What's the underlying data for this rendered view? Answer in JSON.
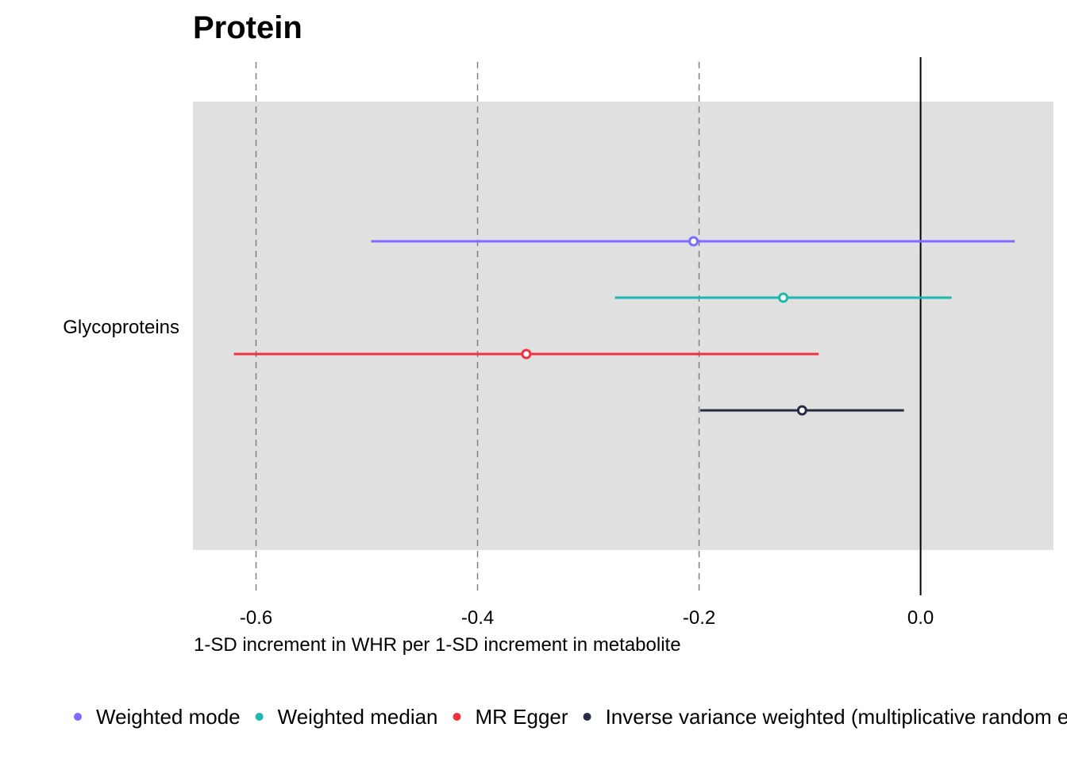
{
  "chart_data": {
    "type": "forest",
    "title": "Protein",
    "xlabel": "1-SD increment in WHR per 1-SD increment in metabolite",
    "ylabel": "",
    "xlim": [
      -0.657,
      0.12
    ],
    "x_ticks": [
      -0.6,
      -0.4,
      -0.2,
      0.0
    ],
    "x_tick_labels": [
      "-0.6",
      "-0.4",
      "-0.2",
      "0.0"
    ],
    "reference_line": 0.0,
    "dashed_gridlines": [
      -0.6,
      -0.4,
      -0.2
    ],
    "categories": [
      "Glycoproteins"
    ],
    "legend_position": "bottom",
    "series": [
      {
        "name": "Weighted mode",
        "color": "#7B6CFF",
        "estimate": -0.205,
        "lower": -0.496,
        "upper": 0.085
      },
      {
        "name": "Weighted median",
        "color": "#1CB8AE",
        "estimate": -0.124,
        "lower": -0.276,
        "upper": 0.028
      },
      {
        "name": "MR Egger",
        "color": "#F2313F",
        "estimate": -0.356,
        "lower": -0.62,
        "upper": -0.092
      },
      {
        "name": "Inverse variance weighted (multiplicative random effects)",
        "color": "#262C44",
        "estimate": -0.107,
        "lower": -0.199,
        "upper": -0.015
      }
    ]
  }
}
